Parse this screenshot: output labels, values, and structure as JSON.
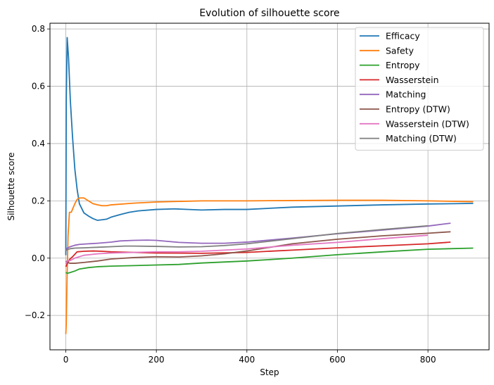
{
  "chart_data": {
    "type": "line",
    "title": "Evolution of silhouette score",
    "xlabel": "Step",
    "ylabel": "Silhouette score",
    "xlim": [
      -35,
      935
    ],
    "ylim": [
      -0.32,
      0.82
    ],
    "xticks": [
      0,
      200,
      400,
      600,
      800
    ],
    "yticks": [
      -0.2,
      0.0,
      0.2,
      0.4,
      0.6,
      0.8
    ],
    "ytick_labels": [
      "−0.2",
      "0.0",
      "0.2",
      "0.4",
      "0.6",
      "0.8"
    ],
    "grid": true,
    "legend_position": "top-right",
    "series": [
      {
        "name": "Efficacy",
        "color": "#1f77b4",
        "x": [
          0,
          1,
          3,
          6,
          10,
          15,
          20,
          25,
          30,
          40,
          50,
          60,
          70,
          80,
          90,
          100,
          120,
          140,
          160,
          200,
          240,
          300,
          350,
          400,
          500,
          600,
          700,
          800,
          900
        ],
        "y": [
          0.01,
          0.55,
          0.77,
          0.7,
          0.55,
          0.42,
          0.31,
          0.24,
          0.19,
          0.158,
          0.147,
          0.138,
          0.132,
          0.134,
          0.136,
          0.143,
          0.152,
          0.16,
          0.165,
          0.17,
          0.172,
          0.168,
          0.17,
          0.17,
          0.178,
          0.182,
          0.186,
          0.189,
          0.191
        ]
      },
      {
        "name": "Safety",
        "color": "#ff7f0e",
        "x": [
          0,
          1,
          3,
          5,
          8,
          12,
          16,
          20,
          25,
          30,
          40,
          50,
          60,
          70,
          80,
          90,
          100,
          150,
          200,
          300,
          400,
          500,
          600,
          700,
          800,
          900
        ],
        "y": [
          -0.265,
          -0.23,
          -0.05,
          0.08,
          0.16,
          0.16,
          0.175,
          0.19,
          0.205,
          0.21,
          0.21,
          0.2,
          0.19,
          0.186,
          0.183,
          0.183,
          0.186,
          0.192,
          0.196,
          0.2,
          0.2,
          0.201,
          0.202,
          0.202,
          0.2,
          0.197
        ]
      },
      {
        "name": "Entropy",
        "color": "#2ca02c",
        "x": [
          0,
          3,
          10,
          20,
          30,
          50,
          70,
          100,
          150,
          200,
          250,
          300,
          400,
          500,
          600,
          700,
          800,
          900
        ],
        "y": [
          -0.05,
          -0.053,
          -0.05,
          -0.045,
          -0.038,
          -0.033,
          -0.03,
          -0.028,
          -0.026,
          -0.024,
          -0.022,
          -0.017,
          -0.01,
          0.0,
          0.012,
          0.022,
          0.031,
          0.035
        ]
      },
      {
        "name": "Wasserstein",
        "color": "#d62728",
        "x": [
          0,
          3,
          8,
          15,
          25,
          40,
          60,
          80,
          100,
          150,
          200,
          300,
          400,
          500,
          600,
          700,
          800,
          850
        ],
        "y": [
          -0.03,
          -0.02,
          -0.005,
          0.005,
          0.022,
          0.024,
          0.025,
          0.024,
          0.022,
          0.02,
          0.018,
          0.017,
          0.02,
          0.028,
          0.036,
          0.043,
          0.05,
          0.056
        ]
      },
      {
        "name": "Matching",
        "color": "#9467bd",
        "x": [
          0,
          3,
          10,
          20,
          30,
          50,
          70,
          100,
          120,
          150,
          180,
          200,
          250,
          300,
          350,
          400,
          500,
          600,
          700,
          800,
          850
        ],
        "y": [
          0.03,
          0.035,
          0.04,
          0.045,
          0.048,
          0.05,
          0.052,
          0.056,
          0.06,
          0.062,
          0.063,
          0.062,
          0.055,
          0.052,
          0.052,
          0.056,
          0.07,
          0.085,
          0.098,
          0.112,
          0.122
        ]
      },
      {
        "name": "Entropy (DTW)",
        "color": "#8c564b",
        "x": [
          0,
          3,
          10,
          20,
          40,
          70,
          100,
          150,
          200,
          250,
          300,
          350,
          400,
          500,
          600,
          700,
          800,
          850
        ],
        "y": [
          -0.01,
          -0.015,
          -0.018,
          -0.018,
          -0.015,
          -0.01,
          -0.003,
          0.002,
          0.005,
          0.004,
          0.008,
          0.015,
          0.025,
          0.05,
          0.066,
          0.078,
          0.087,
          0.092
        ]
      },
      {
        "name": "Wasserstein (DTW)",
        "color": "#e377c2",
        "x": [
          0,
          3,
          10,
          20,
          40,
          70,
          100,
          150,
          200,
          250,
          300,
          400,
          500,
          600,
          700,
          800
        ],
        "y": [
          -0.02,
          -0.01,
          -0.008,
          0.0,
          0.01,
          0.015,
          0.018,
          0.02,
          0.022,
          0.022,
          0.024,
          0.032,
          0.045,
          0.055,
          0.068,
          0.08
        ]
      },
      {
        "name": "Matching (DTW)",
        "color": "#7f7f7f",
        "x": [
          0,
          3,
          10,
          20,
          40,
          70,
          100,
          130,
          150,
          200,
          250,
          300,
          350,
          400,
          500,
          600,
          700,
          800
        ],
        "y": [
          0.025,
          0.03,
          0.033,
          0.035,
          0.036,
          0.038,
          0.04,
          0.042,
          0.042,
          0.041,
          0.039,
          0.04,
          0.044,
          0.05,
          0.068,
          0.086,
          0.1,
          0.113
        ]
      }
    ]
  }
}
